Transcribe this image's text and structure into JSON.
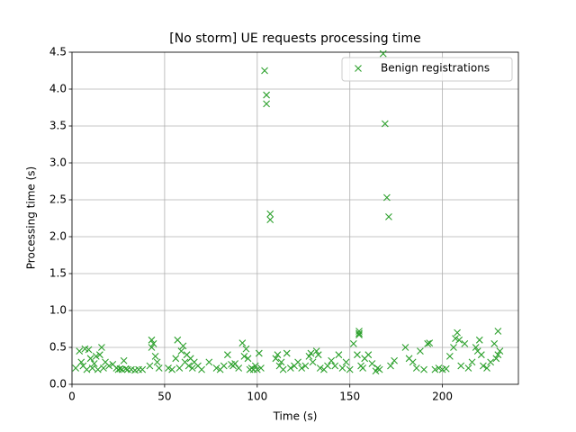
{
  "chart_data": {
    "type": "scatter",
    "title": "[No storm] UE requests processing time",
    "x_label": "Time (s)",
    "y_label": "Processing time (s)",
    "xlim": [
      0,
      241
    ],
    "ylim": [
      0,
      4.5
    ],
    "xticks": [
      0,
      50,
      100,
      150,
      200
    ],
    "yticks": [
      {
        "value": 0,
        "label": "0.0"
      },
      {
        "value": 0.5,
        "label": "0.5"
      },
      {
        "value": 1,
        "label": "1.0"
      },
      {
        "value": 1.5,
        "label": "1.5"
      },
      {
        "value": 2,
        "label": "2.0"
      },
      {
        "value": 2.5,
        "label": "2.5"
      },
      {
        "value": 3,
        "label": "3.0"
      },
      {
        "value": 3.5,
        "label": "3.5"
      },
      {
        "value": 4,
        "label": "4.0"
      },
      {
        "value": 4.5,
        "label": "4.5"
      }
    ],
    "grid": true,
    "legend": "upper right",
    "series": [
      {
        "name": "Benign registrations",
        "color": "#2ca02c",
        "x": [
          2,
          4,
          5,
          6,
          7,
          8,
          9,
          10,
          11,
          12,
          13,
          14,
          15,
          16,
          17,
          18,
          20,
          22,
          24,
          25,
          26,
          27,
          28,
          29,
          30,
          32,
          34,
          36,
          38,
          42,
          43,
          43,
          44,
          45,
          46,
          47,
          52,
          54,
          56,
          57,
          58,
          59,
          60,
          61,
          62,
          63,
          64,
          65,
          66,
          68,
          70,
          74,
          78,
          80,
          82,
          84,
          86,
          87,
          88,
          90,
          92,
          93,
          94,
          95,
          96,
          97,
          98,
          99,
          100,
          101,
          102,
          104,
          105,
          105,
          107,
          107,
          110,
          111,
          112,
          113,
          114,
          116,
          118,
          120,
          122,
          124,
          126,
          128,
          129,
          130,
          132,
          133,
          134,
          136,
          138,
          140,
          142,
          144,
          146,
          148,
          150,
          152,
          154,
          155,
          155,
          155,
          156,
          157,
          158,
          160,
          162,
          164,
          165,
          166,
          168,
          169,
          170,
          171,
          172,
          174,
          180,
          182,
          184,
          186,
          188,
          190,
          192,
          193,
          196,
          198,
          200,
          202,
          204,
          206,
          207,
          208,
          209,
          210,
          212,
          214,
          216,
          218,
          219,
          220,
          221,
          222,
          224,
          226,
          228,
          229,
          230,
          230,
          231
        ],
        "values": [
          0.22,
          0.45,
          0.3,
          0.25,
          0.48,
          0.2,
          0.47,
          0.35,
          0.22,
          0.28,
          0.38,
          0.2,
          0.4,
          0.5,
          0.22,
          0.3,
          0.25,
          0.27,
          0.22,
          0.2,
          0.21,
          0.2,
          0.32,
          0.21,
          0.2,
          0.2,
          0.19,
          0.2,
          0.2,
          0.25,
          0.6,
          0.5,
          0.55,
          0.38,
          0.3,
          0.22,
          0.22,
          0.2,
          0.35,
          0.6,
          0.22,
          0.45,
          0.52,
          0.3,
          0.4,
          0.25,
          0.35,
          0.22,
          0.3,
          0.25,
          0.2,
          0.3,
          0.22,
          0.2,
          0.25,
          0.4,
          0.27,
          0.25,
          0.28,
          0.22,
          0.56,
          0.38,
          0.48,
          0.35,
          0.2,
          0.22,
          0.2,
          0.25,
          0.2,
          0.42,
          0.22,
          4.25,
          3.92,
          3.8,
          2.31,
          2.23,
          0.35,
          0.4,
          0.25,
          0.3,
          0.2,
          0.42,
          0.22,
          0.25,
          0.3,
          0.22,
          0.25,
          0.38,
          0.42,
          0.3,
          0.45,
          0.4,
          0.22,
          0.2,
          0.25,
          0.32,
          0.25,
          0.4,
          0.22,
          0.3,
          0.2,
          0.55,
          0.4,
          0.72,
          0.69,
          0.67,
          0.25,
          0.22,
          0.35,
          0.4,
          0.28,
          0.18,
          0.22,
          0.2,
          4.48,
          3.53,
          2.53,
          2.27,
          0.25,
          0.32,
          0.5,
          0.35,
          0.3,
          0.22,
          0.45,
          0.2,
          0.55,
          0.56,
          0.2,
          0.22,
          0.2,
          0.21,
          0.38,
          0.5,
          0.62,
          0.7,
          0.6,
          0.25,
          0.55,
          0.22,
          0.3,
          0.5,
          0.45,
          0.6,
          0.4,
          0.25,
          0.22,
          0.3,
          0.55,
          0.35,
          0.72,
          0.4,
          0.45
        ]
      }
    ]
  }
}
